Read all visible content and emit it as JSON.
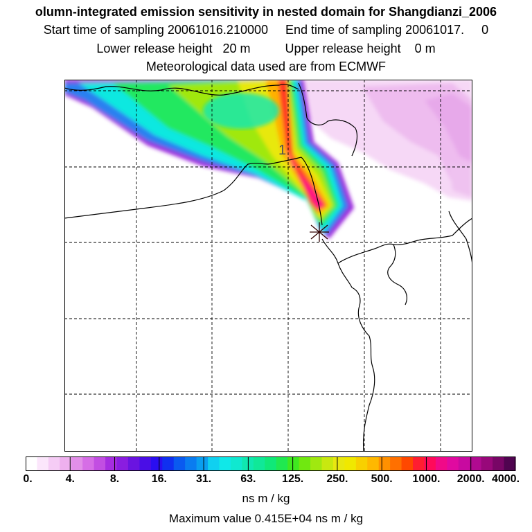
{
  "header": {
    "title": "olumn-integrated emission sensitivity in nested domain for Shangdianzi_2006",
    "sampling": "Start time of sampling 20061016.210000     End time of sampling 20061017.     0",
    "release": "Lower release height   20 m          Upper release height    0 m",
    "met": "Meteorological data used are from ECMWF"
  },
  "map": {
    "station_marker": "*",
    "station_label": "1",
    "grid": "dashed"
  },
  "colorbar": {
    "tick_labels": [
      "0.",
      "4.",
      "8.",
      "16.",
      "31.",
      "63.",
      "125.",
      "250.",
      "500.",
      "1000.",
      "2000.",
      "4000."
    ],
    "colors": [
      "#ffffff",
      "#fbe6fb",
      "#f5ccf5",
      "#eeb0ee",
      "#e28fe8",
      "#d66ee6",
      "#c24ee2",
      "#a62de0",
      "#8a1de0",
      "#6a14e0",
      "#4a0ee6",
      "#2a0ef0",
      "#1030f0",
      "#0a5af0",
      "#0a7cf0",
      "#0a9ef0",
      "#10d0f0",
      "#10e8e8",
      "#10e8d0",
      "#10e8b0",
      "#10e898",
      "#10e878",
      "#20e850",
      "#40e820",
      "#70e810",
      "#a0e810",
      "#c8e810",
      "#e8e810",
      "#f0e800",
      "#f8d000",
      "#ffb800",
      "#ff9000",
      "#ff7000",
      "#ff4800",
      "#ff1e30",
      "#ff0a5a",
      "#f00a88",
      "#e00aa0",
      "#c80aa0",
      "#b00a90",
      "#98087a",
      "#780666",
      "#500450"
    ],
    "units": "ns m / kg",
    "max_value": "Maximum value  0.415E+04 ns m / kg"
  }
}
